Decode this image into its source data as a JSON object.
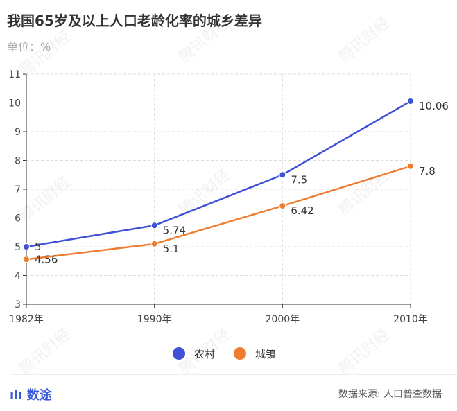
{
  "title": "我国65岁及以上人口老龄化率的城乡差异",
  "unit": "单位：%",
  "watermark": "腾讯财经",
  "brand": "数途",
  "source": "数据来源: 人口普查数据",
  "chart_data": {
    "type": "line",
    "title": "我国65岁及以上人口老龄化率的城乡差异",
    "categories": [
      "1982年",
      "1990年",
      "2000年",
      "2010年"
    ],
    "ylim": [
      3,
      11
    ],
    "yticks": [
      3,
      4,
      5,
      6,
      7,
      8,
      9,
      10,
      11
    ],
    "grid": true,
    "legend": "bottom",
    "series": [
      {
        "name": "农村",
        "color": "#3f51d6",
        "values": [
          5,
          5.74,
          7.5,
          10.06
        ],
        "labels": [
          "5",
          "5.74",
          "7.5",
          "10.06"
        ]
      },
      {
        "name": "城镇",
        "color": "#ee7d31",
        "values": [
          4.56,
          5.1,
          6.42,
          7.8
        ],
        "labels": [
          "4.56",
          "5.1",
          "6.42",
          "7.8"
        ]
      }
    ]
  }
}
